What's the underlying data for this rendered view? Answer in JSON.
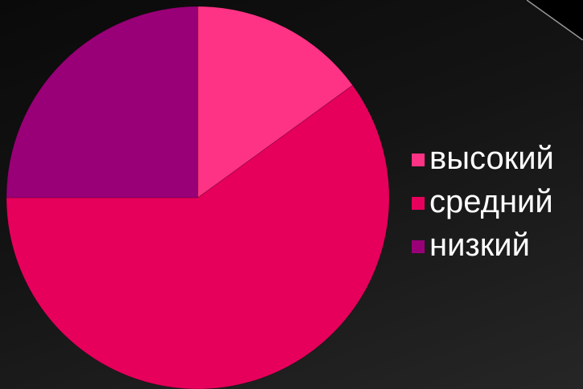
{
  "chart_data": {
    "type": "pie",
    "title": "",
    "categories": [
      "высокий",
      "средний",
      "низкий"
    ],
    "values": [
      15,
      60,
      25
    ],
    "colors": [
      "#ff3385",
      "#e6005c",
      "#990077"
    ],
    "legend_position": "right",
    "start_angle": "12 o'clock",
    "direction": "clockwise"
  },
  "background": {
    "accent_corner_icon": "corner-bevel-icon"
  }
}
